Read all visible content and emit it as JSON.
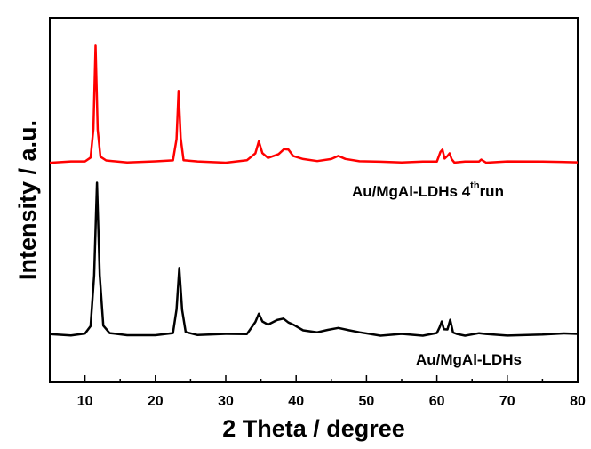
{
  "chart_data": {
    "type": "line",
    "title": "",
    "xlabel": "2 Theta / degree",
    "ylabel": "Intensity / a.u.",
    "xlim": [
      5,
      80
    ],
    "xticks": [
      10,
      20,
      30,
      40,
      50,
      60,
      70,
      80
    ],
    "yticks_shown": false,
    "grid": false,
    "legend": "none",
    "series": [
      {
        "name": "Au/MgAl-LDHs 4th run",
        "label_main": "Au/MgAl-LDHs 4",
        "label_sup": "th",
        "label_tail": "run",
        "color": "#ff0000",
        "x": [
          5,
          8,
          10,
          10.8,
          11.2,
          11.5,
          11.8,
          12.2,
          13,
          16,
          20,
          22.5,
          23.0,
          23.3,
          23.6,
          24.0,
          26,
          30,
          33,
          34.2,
          34.7,
          35.2,
          36,
          37.5,
          38.3,
          38.9,
          39.6,
          41,
          43,
          45,
          46,
          47,
          49,
          52,
          55,
          58,
          60,
          60.5,
          60.8,
          61.1,
          61.5,
          61.8,
          62.1,
          62.5,
          64,
          66,
          66.3,
          67,
          70,
          75,
          80
        ],
        "y": [
          0.02,
          0.02,
          0.03,
          0.06,
          0.3,
          1.0,
          0.3,
          0.06,
          0.03,
          0.02,
          0.02,
          0.03,
          0.22,
          0.62,
          0.22,
          0.04,
          0.02,
          0.02,
          0.03,
          0.1,
          0.19,
          0.1,
          0.06,
          0.09,
          0.13,
          0.12,
          0.07,
          0.05,
          0.03,
          0.04,
          0.07,
          0.05,
          0.03,
          0.02,
          0.02,
          0.02,
          0.03,
          0.1,
          0.13,
          0.05,
          0.07,
          0.1,
          0.04,
          0.02,
          0.02,
          0.03,
          0.04,
          0.02,
          0.02,
          0.02,
          0.02
        ]
      },
      {
        "name": "Au/MgAl-LDHs",
        "label_main": "Au/MgAl-LDHs",
        "label_sup": "",
        "label_tail": "",
        "color": "#000000",
        "x": [
          5,
          8,
          10,
          10.8,
          11.3,
          11.7,
          12.1,
          12.6,
          13.5,
          16,
          20,
          22.5,
          23.0,
          23.4,
          23.8,
          24.3,
          26,
          30,
          33,
          34.2,
          34.7,
          35.2,
          36,
          37.3,
          38.2,
          38.9,
          39.6,
          41,
          43,
          44.5,
          46,
          47.5,
          49,
          52,
          55,
          58,
          60,
          60.4,
          60.7,
          61.0,
          61.5,
          61.9,
          62.3,
          62.8,
          64,
          66,
          67,
          70,
          75,
          78,
          80
        ],
        "y": [
          0.02,
          0.02,
          0.03,
          0.08,
          0.4,
          1.0,
          0.4,
          0.08,
          0.03,
          0.02,
          0.02,
          0.03,
          0.18,
          0.45,
          0.18,
          0.04,
          0.02,
          0.02,
          0.03,
          0.1,
          0.16,
          0.1,
          0.08,
          0.12,
          0.13,
          0.1,
          0.08,
          0.05,
          0.03,
          0.05,
          0.07,
          0.05,
          0.03,
          0.02,
          0.02,
          0.02,
          0.03,
          0.07,
          0.11,
          0.05,
          0.06,
          0.11,
          0.04,
          0.02,
          0.02,
          0.03,
          0.02,
          0.02,
          0.02,
          0.03,
          0.02
        ]
      }
    ]
  }
}
